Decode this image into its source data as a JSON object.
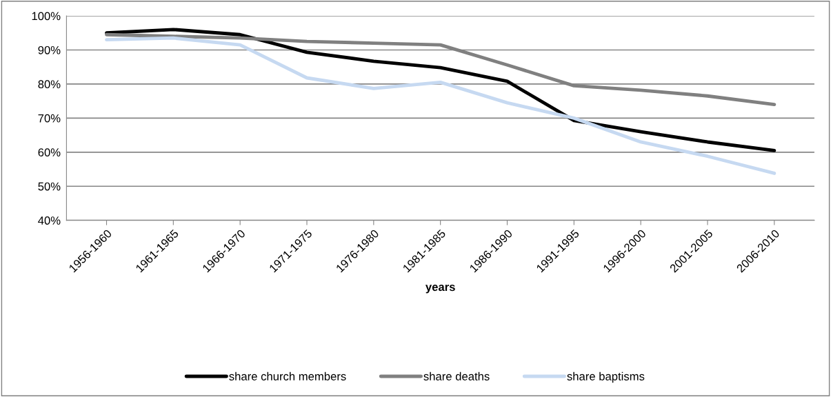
{
  "chart_data": {
    "type": "line",
    "xlabel": "years",
    "categories": [
      "1956-1960",
      "1961-1965",
      "1966-1970",
      "1971-1975",
      "1976-1980",
      "1981-1985",
      "1986-1990",
      "1991-1995",
      "1996-2000",
      "2001-2005",
      "2006-2010"
    ],
    "series": [
      {
        "name": "share church members",
        "color": "#000000",
        "values": [
          95.0,
          96.0,
          94.5,
          89.3,
          86.7,
          84.8,
          80.8,
          69.3,
          66.0,
          63.0,
          60.5
        ]
      },
      {
        "name": "share deaths",
        "color": "#808080",
        "values": [
          94.5,
          94.0,
          93.5,
          92.5,
          92.0,
          91.5,
          85.6,
          79.5,
          78.2,
          76.5,
          74.0
        ]
      },
      {
        "name": "share baptisms",
        "color": "#c6d9f1",
        "values": [
          93.0,
          93.5,
          91.5,
          81.8,
          78.7,
          80.5,
          74.5,
          70.0,
          63.0,
          58.8,
          53.8
        ]
      }
    ],
    "ylim": [
      40,
      100
    ],
    "yticks": [
      {
        "value": 40,
        "label": "40%"
      },
      {
        "value": 50,
        "label": "50%"
      },
      {
        "value": 60,
        "label": "60%"
      },
      {
        "value": 70,
        "label": "70%"
      },
      {
        "value": 80,
        "label": "80%"
      },
      {
        "value": 90,
        "label": "90%"
      },
      {
        "value": 100,
        "label": "100%"
      }
    ],
    "grid": "y",
    "legend": "bottom",
    "marker": "none",
    "line_style": "solid"
  }
}
